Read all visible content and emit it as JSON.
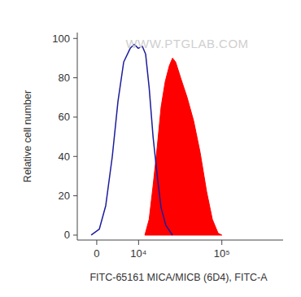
{
  "chart_data": {
    "type": "line",
    "x_label": "FITC-65161 MICA/MICB (6D4), FITC-A",
    "y_label": "Relative cell number",
    "annotations": [
      "WWW.PTGLAB.COM"
    ],
    "log": "x",
    "xlim": [
      -4000,
      500000
    ],
    "xticks": [
      0,
      {
        "value": 10000,
        "label": "10⁴"
      },
      {
        "value": 100000,
        "label": "10⁵"
      }
    ],
    "ylim": [
      -2.5,
      103
    ],
    "yticks": [
      0,
      20,
      40,
      60,
      80,
      100
    ],
    "grid": false,
    "series": [
      {
        "type": "line",
        "color": "#1c1c9c",
        "x": [
          -1100,
          500,
          1790,
          3150,
          4400,
          5760,
          7470,
          8630,
          9900,
          11300,
          12500,
          13900,
          15600,
          17600,
          19600,
          22400,
          26900
        ],
        "values": [
          0,
          3,
          15,
          40,
          68,
          88,
          95,
          97,
          95,
          96,
          92,
          75,
          50,
          30,
          14,
          5,
          0
        ]
      },
      {
        "type": "area",
        "color": "#ff0000",
        "x": [
          12200,
          13900,
          15600,
          17600,
          19600,
          22000,
          24600,
          26900,
          29300,
          33500,
          39900,
          47500,
          56400,
          67000,
          77900,
          90500,
          100000
        ],
        "values": [
          0,
          8,
          25,
          45,
          65,
          78,
          86,
          90,
          88,
          80,
          70,
          58,
          42,
          22,
          8,
          1,
          0
        ]
      }
    ]
  }
}
